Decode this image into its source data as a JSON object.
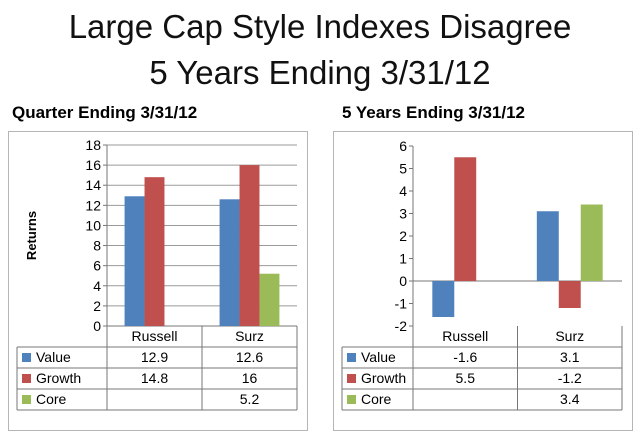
{
  "slide": {
    "title_line1": "Large Cap Style Indexes Disagree",
    "title_line2": "5 Years Ending 3/31/12"
  },
  "colors": {
    "value": "#4f81bd",
    "growth": "#c0504d",
    "core": "#9bbb59",
    "grid": "#9a9a9a",
    "border": "#b5b5b5"
  },
  "chart_data": [
    {
      "type": "bar",
      "title": "Quarter Ending 3/31/12",
      "ylabel": "Returns",
      "categories": [
        "Russell",
        "Surz"
      ],
      "series": [
        {
          "name": "Value",
          "values": [
            12.9,
            12.6
          ]
        },
        {
          "name": "Growth",
          "values": [
            14.8,
            16
          ]
        },
        {
          "name": "Core",
          "values": [
            null,
            5.2
          ]
        }
      ],
      "data_table": [
        [
          "12.9",
          "12.6"
        ],
        [
          "14.8",
          "16"
        ],
        [
          "",
          "5.2"
        ]
      ],
      "ylim": [
        0,
        18
      ],
      "yticks": [
        0,
        2,
        4,
        6,
        8,
        10,
        12,
        14,
        16,
        18
      ],
      "grid": true,
      "legend": "data-table"
    },
    {
      "type": "bar",
      "title": "5 Years Ending 3/31/12",
      "ylabel": "",
      "categories": [
        "Russell",
        "Surz"
      ],
      "series": [
        {
          "name": "Value",
          "values": [
            -1.6,
            3.1
          ]
        },
        {
          "name": "Growth",
          "values": [
            5.5,
            -1.2
          ]
        },
        {
          "name": "Core",
          "values": [
            null,
            3.4
          ]
        }
      ],
      "data_table": [
        [
          "-1.6",
          "3.1"
        ],
        [
          "5.5",
          "-1.2"
        ],
        [
          "",
          "3.4"
        ]
      ],
      "ylim": [
        -2,
        6
      ],
      "yticks": [
        -2,
        -1,
        0,
        1,
        2,
        3,
        4,
        5,
        6
      ],
      "grid": false,
      "legend": "data-table"
    }
  ]
}
